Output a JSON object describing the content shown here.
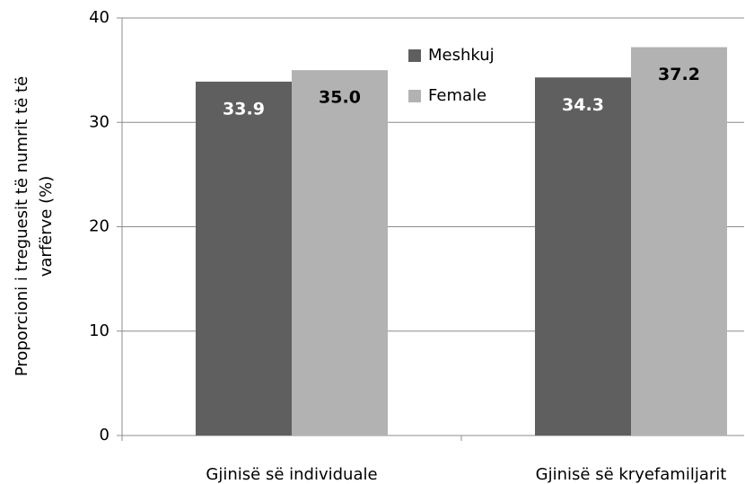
{
  "chart_data": {
    "type": "bar",
    "ylabel": [
      "Proporcioni i treguesit të numrit të të",
      "varfërve (%)"
    ],
    "categories": [
      "Gjinisë së individuale",
      "Gjinisë së kryefamiljarit"
    ],
    "series": [
      {
        "name": "Meshkuj",
        "color": "#5f5f5f",
        "label_color": "#ffffff",
        "values": [
          33.9,
          34.3
        ],
        "value_labels": [
          "33.9",
          "34.3"
        ]
      },
      {
        "name": "Female",
        "color": "#b2b2b2",
        "label_color": "#000000",
        "values": [
          35,
          37.2
        ],
        "value_labels": [
          "35.0",
          "37.2"
        ]
      }
    ],
    "ylim": [
      0,
      40
    ],
    "yticks": [
      0,
      10,
      20,
      30,
      40
    ],
    "grid": true,
    "legend": "top"
  }
}
